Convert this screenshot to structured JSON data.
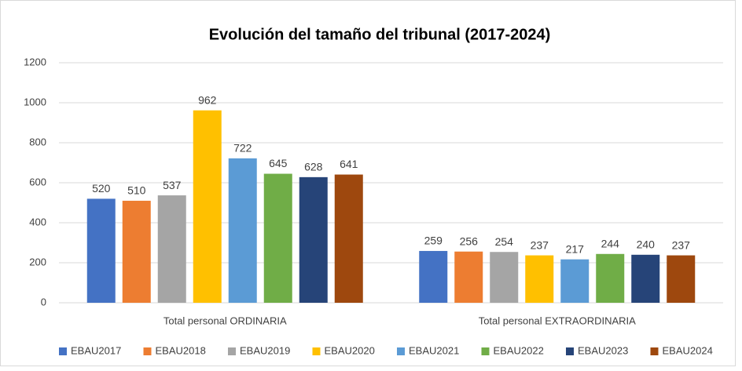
{
  "chart_data": {
    "type": "bar",
    "title": "Evolución del tamaño del tribunal (2017-2024)",
    "categories": [
      "Total personal ORDINARIA",
      "Total personal EXTRAORDINARIA"
    ],
    "series": [
      {
        "name": "EBAU2017",
        "color": "#4472c4",
        "values": [
          520,
          259
        ]
      },
      {
        "name": "EBAU2018",
        "color": "#ed7d31",
        "values": [
          510,
          256
        ]
      },
      {
        "name": "EBAU2019",
        "color": "#a5a5a5",
        "values": [
          537,
          254
        ]
      },
      {
        "name": "EBAU2020",
        "color": "#ffc000",
        "values": [
          962,
          237
        ]
      },
      {
        "name": "EBAU2021",
        "color": "#5b9bd5",
        "values": [
          722,
          217
        ]
      },
      {
        "name": "EBAU2022",
        "color": "#70ad47",
        "values": [
          645,
          244
        ]
      },
      {
        "name": "EBAU2023",
        "color": "#264478",
        "values": [
          628,
          240
        ]
      },
      {
        "name": "EBAU2024",
        "color": "#9e480e",
        "values": [
          641,
          237
        ]
      }
    ],
    "ylim": [
      0,
      1200
    ],
    "yticks": [
      0,
      200,
      400,
      600,
      800,
      1000,
      1200
    ],
    "grid": true,
    "legend": "bottom"
  }
}
